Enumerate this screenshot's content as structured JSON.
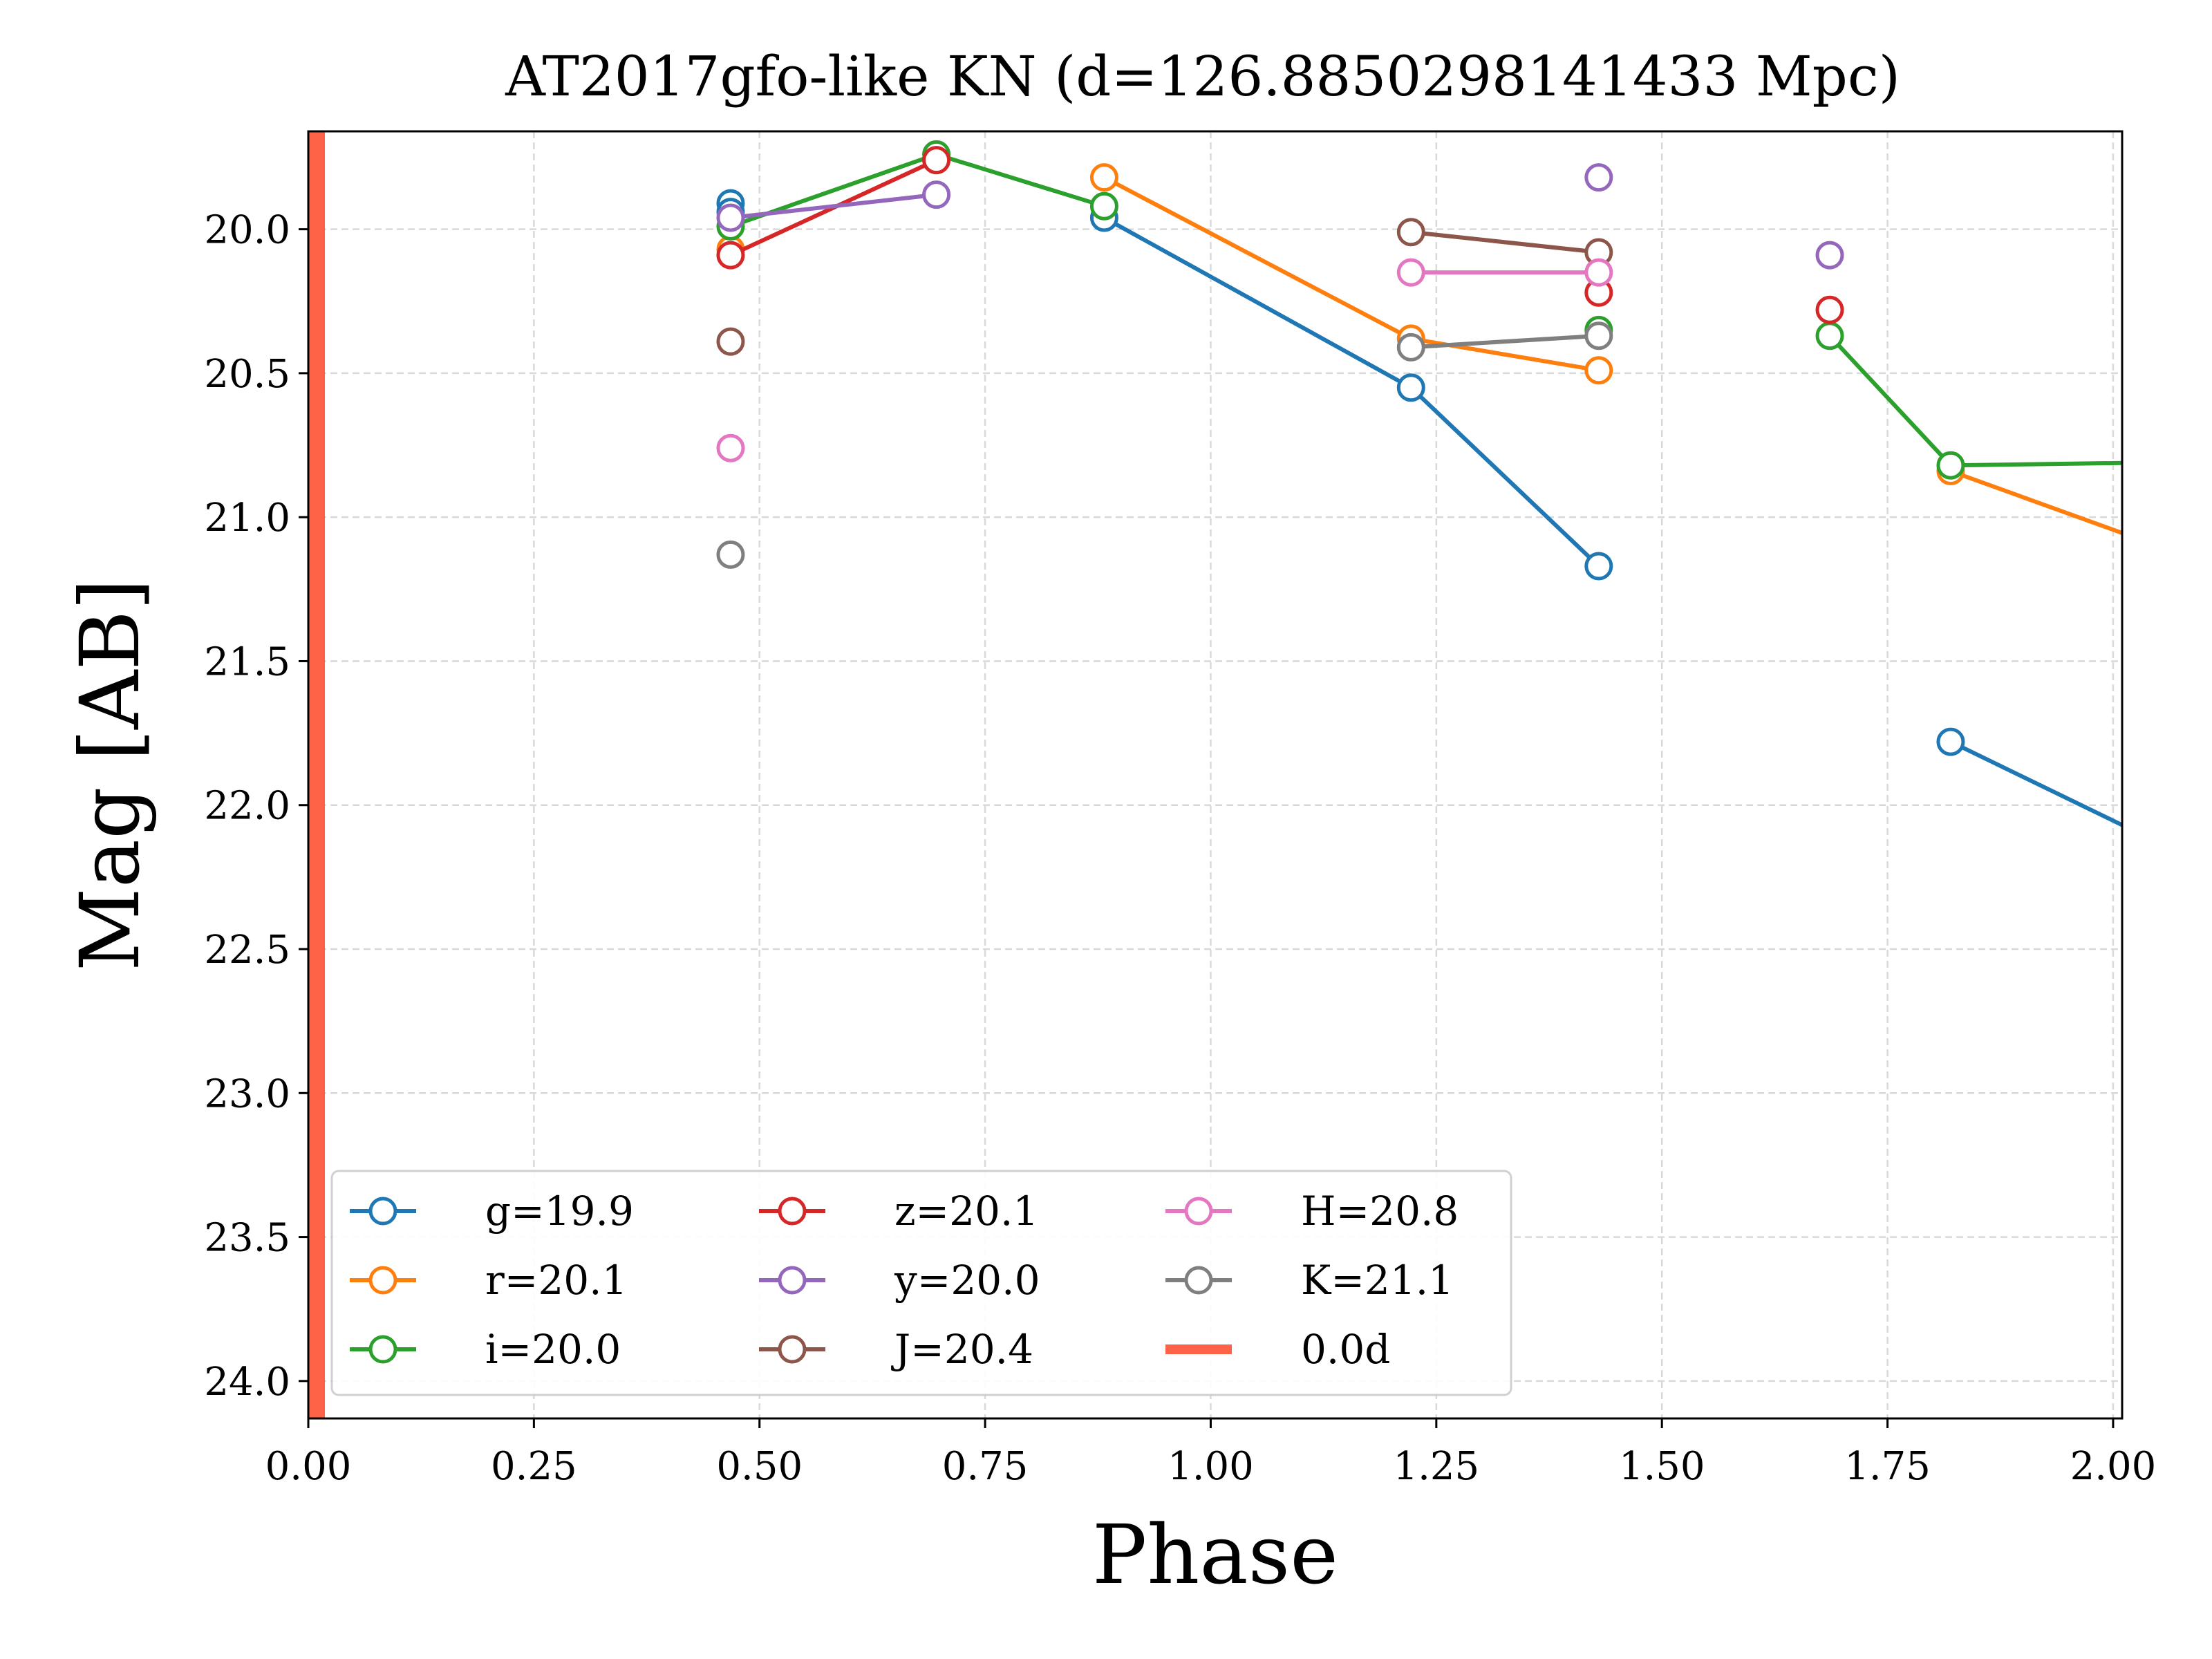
{
  "chart_data": {
    "type": "line",
    "title": "AT2017gfo-like KN (d=126.8850298141433 Mpc)",
    "xlabel": "Phase",
    "ylabel": "Mag [AB]",
    "xlim": [
      0.0,
      2.01
    ],
    "ylim": [
      24.13,
      19.66
    ],
    "y_inverted": true,
    "grid": true,
    "legend_placement": "lower-left",
    "legend_columns": 3,
    "x_ticks": [
      "0.00",
      "0.25",
      "0.50",
      "0.75",
      "1.00",
      "1.25",
      "1.50",
      "1.75",
      "2.00"
    ],
    "y_ticks": [
      "20.0",
      "20.5",
      "21.0",
      "21.5",
      "22.0",
      "22.5",
      "23.0",
      "23.5",
      "24.0"
    ],
    "series": [
      {
        "name": "g=19.9",
        "color": "#1f77b4",
        "segments": [
          [
            [
              0.468,
              19.91
            ],
            [
              0.468,
              19.94
            ]
          ],
          [
            [
              0.882,
              19.96
            ],
            [
              1.222,
              20.55
            ],
            [
              1.43,
              21.17
            ]
          ],
          [
            [
              1.82,
              21.78
            ],
            [
              2.05,
              22.13
            ]
          ]
        ]
      },
      {
        "name": "r=20.1",
        "color": "#ff7f0e",
        "segments": [
          [
            [
              0.468,
              20.07
            ]
          ],
          [
            [
              0.882,
              19.82
            ],
            [
              1.222,
              20.38
            ],
            [
              1.43,
              20.49
            ]
          ],
          [
            [
              1.82,
              20.84
            ],
            [
              2.05,
              21.1
            ]
          ]
        ]
      },
      {
        "name": "i=20.0",
        "color": "#2ca02c",
        "segments": [
          [
            [
              0.468,
              19.99
            ],
            [
              0.696,
              19.74
            ],
            [
              0.882,
              19.92
            ]
          ],
          [
            [
              1.43,
              20.35
            ]
          ],
          [
            [
              1.686,
              20.37
            ],
            [
              1.82,
              20.82
            ],
            [
              2.05,
              20.81
            ]
          ]
        ]
      },
      {
        "name": "z=20.1",
        "color": "#d62728",
        "segments": [
          [
            [
              0.468,
              20.09
            ],
            [
              0.696,
              19.76
            ]
          ],
          [
            [
              1.43,
              20.22
            ]
          ],
          [
            [
              1.686,
              20.28
            ]
          ]
        ]
      },
      {
        "name": "y=20.0",
        "color": "#9467bd",
        "segments": [
          [
            [
              0.468,
              19.96
            ],
            [
              0.696,
              19.88
            ]
          ],
          [
            [
              1.43,
              19.82
            ]
          ],
          [
            [
              1.686,
              20.09
            ]
          ]
        ]
      },
      {
        "name": "J=20.4",
        "color": "#8c564b",
        "segments": [
          [
            [
              0.468,
              20.39
            ]
          ],
          [
            [
              1.222,
              20.01
            ],
            [
              1.43,
              20.08
            ]
          ]
        ]
      },
      {
        "name": "H=20.8",
        "color": "#e377c2",
        "segments": [
          [
            [
              0.468,
              20.76
            ]
          ],
          [
            [
              1.222,
              20.15
            ],
            [
              1.43,
              20.15
            ]
          ]
        ]
      },
      {
        "name": "K=21.1",
        "color": "#7f7f7f",
        "segments": [
          [
            [
              0.468,
              21.13
            ]
          ],
          [
            [
              1.222,
              20.41
            ],
            [
              1.43,
              20.37
            ]
          ]
        ]
      }
    ],
    "vertical_line": {
      "name": "0.0d",
      "x": 0.0,
      "color": "#ff6347"
    }
  }
}
